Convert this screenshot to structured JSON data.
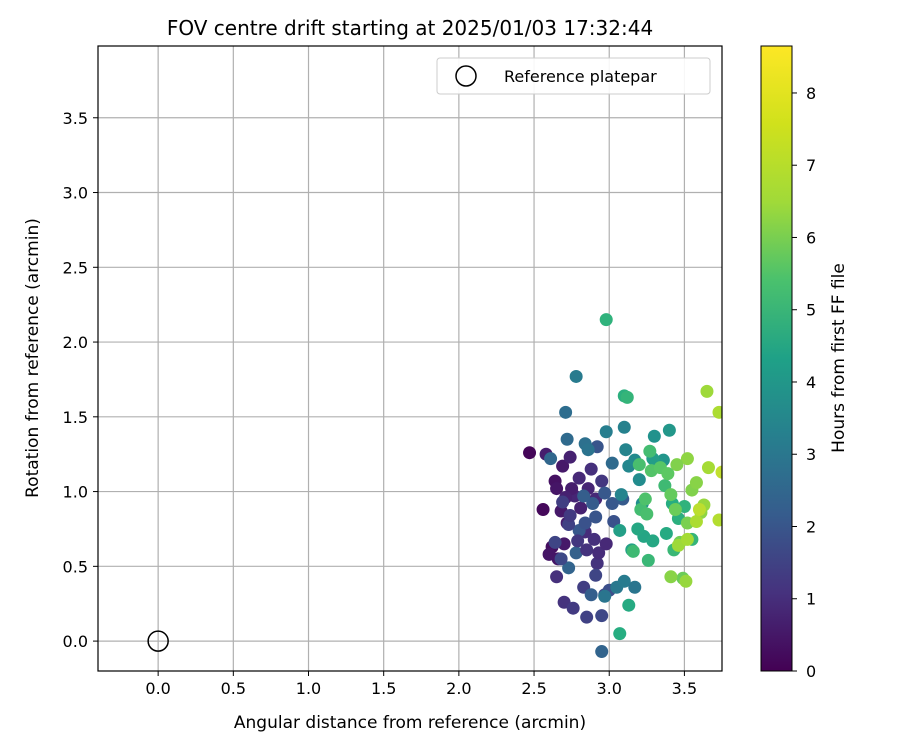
{
  "chart_data": {
    "type": "scatter",
    "title": "FOV centre drift starting at 2025/01/03 17:32:44",
    "xlabel": "Angular distance from reference (arcmin)",
    "ylabel": "Rotation from reference (arcmin)",
    "xlim": [
      -0.4,
      3.75
    ],
    "ylim": [
      -0.2,
      3.98
    ],
    "xticks": [
      0.0,
      0.5,
      1.0,
      1.5,
      2.0,
      2.5,
      3.0,
      3.5
    ],
    "xtick_labels": [
      "0.0",
      "0.5",
      "1.0",
      "1.5",
      "2.0",
      "2.5",
      "3.0",
      "3.5"
    ],
    "yticks": [
      0.0,
      0.5,
      1.0,
      1.5,
      2.0,
      2.5,
      3.0,
      3.5
    ],
    "ytick_labels": [
      "0.0",
      "0.5",
      "1.0",
      "1.5",
      "2.0",
      "2.5",
      "3.0",
      "3.5"
    ],
    "grid": true,
    "legend": {
      "position": "top-right",
      "entries": [
        "Reference platepar"
      ]
    },
    "reference_point": {
      "x": 0.0,
      "y": 0.0,
      "label": "Reference platepar",
      "marker": "open-circle",
      "color": "#000000"
    },
    "colorbar": {
      "label": "Hours from first FF file",
      "colormap": "viridis",
      "range": [
        0,
        8.65
      ],
      "ticks": [
        0,
        1,
        2,
        3,
        4,
        5,
        6,
        7,
        8
      ],
      "tick_labels": [
        "0",
        "1",
        "2",
        "3",
        "4",
        "5",
        "6",
        "7",
        "8"
      ]
    },
    "points": [
      {
        "x": 2.47,
        "y": 1.26,
        "h": 0.1
      },
      {
        "x": 2.56,
        "y": 0.88,
        "h": 0.2
      },
      {
        "x": 2.62,
        "y": 0.63,
        "h": 0.3
      },
      {
        "x": 2.64,
        "y": 1.07,
        "h": 0.4
      },
      {
        "x": 2.66,
        "y": 0.55,
        "h": 0.5
      },
      {
        "x": 2.69,
        "y": 1.17,
        "h": 0.6
      },
      {
        "x": 2.72,
        "y": 0.79,
        "h": 0.7
      },
      {
        "x": 2.74,
        "y": 1.23,
        "h": 0.8
      },
      {
        "x": 2.77,
        "y": 0.97,
        "h": 0.9
      },
      {
        "x": 2.8,
        "y": 1.09,
        "h": 1.0
      },
      {
        "x": 2.84,
        "y": 0.73,
        "h": 1.1
      },
      {
        "x": 2.88,
        "y": 1.15,
        "h": 1.2
      },
      {
        "x": 2.92,
        "y": 0.52,
        "h": 1.3
      },
      {
        "x": 2.95,
        "y": 1.07,
        "h": 1.4
      },
      {
        "x": 2.65,
        "y": 1.02,
        "h": 0.5
      },
      {
        "x": 2.7,
        "y": 0.65,
        "h": 0.6
      },
      {
        "x": 2.75,
        "y": 1.02,
        "h": 0.7
      },
      {
        "x": 2.81,
        "y": 0.89,
        "h": 0.8
      },
      {
        "x": 2.86,
        "y": 1.02,
        "h": 0.9
      },
      {
        "x": 2.91,
        "y": 0.95,
        "h": 1.0
      },
      {
        "x": 2.6,
        "y": 0.58,
        "h": 0.5
      },
      {
        "x": 2.68,
        "y": 0.87,
        "h": 0.6
      },
      {
        "x": 2.58,
        "y": 1.25,
        "h": 0.7
      },
      {
        "x": 2.71,
        "y": 0.96,
        "h": 0.8
      },
      {
        "x": 2.65,
        "y": 0.43,
        "h": 1.2
      },
      {
        "x": 2.7,
        "y": 0.26,
        "h": 1.3
      },
      {
        "x": 2.76,
        "y": 0.22,
        "h": 1.5
      },
      {
        "x": 2.83,
        "y": 0.36,
        "h": 1.6
      },
      {
        "x": 2.85,
        "y": 0.16,
        "h": 1.7
      },
      {
        "x": 2.91,
        "y": 0.44,
        "h": 1.8
      },
      {
        "x": 2.95,
        "y": 0.17,
        "h": 1.9
      },
      {
        "x": 2.97,
        "y": 0.31,
        "h": 2.0
      },
      {
        "x": 3.0,
        "y": 0.34,
        "h": 2.1
      },
      {
        "x": 3.03,
        "y": 0.8,
        "h": 2.2
      },
      {
        "x": 2.92,
        "y": 1.3,
        "h": 2.3
      },
      {
        "x": 2.97,
        "y": 0.99,
        "h": 2.4
      },
      {
        "x": 2.89,
        "y": 0.92,
        "h": 2.5
      },
      {
        "x": 2.83,
        "y": 0.97,
        "h": 2.6
      },
      {
        "x": 2.78,
        "y": 0.59,
        "h": 2.7
      },
      {
        "x": 2.73,
        "y": 0.49,
        "h": 2.8
      },
      {
        "x": 2.61,
        "y": 1.22,
        "h": 2.9
      },
      {
        "x": 2.72,
        "y": 1.35,
        "h": 3.0
      },
      {
        "x": 2.71,
        "y": 1.53,
        "h": 3.1
      },
      {
        "x": 2.84,
        "y": 1.32,
        "h": 3.2
      },
      {
        "x": 2.86,
        "y": 1.28,
        "h": 3.3
      },
      {
        "x": 2.97,
        "y": 0.3,
        "h": 3.4
      },
      {
        "x": 3.05,
        "y": 0.36,
        "h": 3.5
      },
      {
        "x": 3.1,
        "y": 0.4,
        "h": 3.6
      },
      {
        "x": 3.17,
        "y": 0.36,
        "h": 3.4
      },
      {
        "x": 2.95,
        "y": -0.07,
        "h": 2.8
      },
      {
        "x": 2.88,
        "y": 0.31,
        "h": 2.6
      },
      {
        "x": 2.8,
        "y": 0.74,
        "h": 2.4
      },
      {
        "x": 2.78,
        "y": 1.77,
        "h": 3.6
      },
      {
        "x": 2.98,
        "y": 1.4,
        "h": 3.7
      },
      {
        "x": 3.1,
        "y": 1.43,
        "h": 3.8
      },
      {
        "x": 3.11,
        "y": 1.28,
        "h": 3.9
      },
      {
        "x": 2.84,
        "y": 0.79,
        "h": 2.2
      },
      {
        "x": 2.91,
        "y": 0.83,
        "h": 2.3
      },
      {
        "x": 3.02,
        "y": 0.92,
        "h": 2.4
      },
      {
        "x": 3.09,
        "y": 0.95,
        "h": 2.5
      },
      {
        "x": 2.68,
        "y": 0.55,
        "h": 1.9
      },
      {
        "x": 2.64,
        "y": 0.66,
        "h": 1.8
      },
      {
        "x": 2.73,
        "y": 0.78,
        "h": 1.7
      },
      {
        "x": 2.69,
        "y": 0.93,
        "h": 1.6
      },
      {
        "x": 2.74,
        "y": 0.84,
        "h": 1.5
      },
      {
        "x": 2.79,
        "y": 0.67,
        "h": 1.4
      },
      {
        "x": 2.85,
        "y": 0.61,
        "h": 1.3
      },
      {
        "x": 2.9,
        "y": 0.68,
        "h": 1.2
      },
      {
        "x": 2.93,
        "y": 0.59,
        "h": 1.1
      },
      {
        "x": 2.98,
        "y": 0.65,
        "h": 1.0
      },
      {
        "x": 3.02,
        "y": 1.19,
        "h": 3.0
      },
      {
        "x": 3.08,
        "y": 0.98,
        "h": 3.9
      },
      {
        "x": 3.13,
        "y": 1.17,
        "h": 4.0
      },
      {
        "x": 3.17,
        "y": 1.21,
        "h": 4.1
      },
      {
        "x": 3.2,
        "y": 1.08,
        "h": 4.2
      },
      {
        "x": 3.22,
        "y": 0.92,
        "h": 4.3
      },
      {
        "x": 3.3,
        "y": 1.37,
        "h": 4.4
      },
      {
        "x": 3.36,
        "y": 1.21,
        "h": 4.5
      },
      {
        "x": 3.4,
        "y": 1.41,
        "h": 4.6
      },
      {
        "x": 3.33,
        "y": 1.18,
        "h": 4.7
      },
      {
        "x": 3.29,
        "y": 1.22,
        "h": 4.8
      },
      {
        "x": 3.07,
        "y": 0.74,
        "h": 4.9
      },
      {
        "x": 3.15,
        "y": 0.61,
        "h": 5.0
      },
      {
        "x": 3.23,
        "y": 0.7,
        "h": 5.1
      },
      {
        "x": 3.29,
        "y": 0.67,
        "h": 5.2
      },
      {
        "x": 3.38,
        "y": 0.72,
        "h": 5.3
      },
      {
        "x": 3.42,
        "y": 0.92,
        "h": 5.4
      },
      {
        "x": 3.46,
        "y": 0.82,
        "h": 5.5
      },
      {
        "x": 3.5,
        "y": 0.9,
        "h": 5.6
      },
      {
        "x": 3.55,
        "y": 0.68,
        "h": 5.7
      },
      {
        "x": 3.43,
        "y": 0.61,
        "h": 5.8
      },
      {
        "x": 3.37,
        "y": 1.04,
        "h": 5.9
      },
      {
        "x": 3.27,
        "y": 1.27,
        "h": 6.0
      },
      {
        "x": 3.2,
        "y": 1.18,
        "h": 6.1
      },
      {
        "x": 2.98,
        "y": 2.15,
        "h": 5.6
      },
      {
        "x": 3.1,
        "y": 1.64,
        "h": 5.5
      },
      {
        "x": 3.12,
        "y": 1.63,
        "h": 5.7
      },
      {
        "x": 3.07,
        "y": 0.05,
        "h": 5.4
      },
      {
        "x": 3.13,
        "y": 0.24,
        "h": 5.3
      },
      {
        "x": 3.19,
        "y": 0.75,
        "h": 5.2
      },
      {
        "x": 3.26,
        "y": 0.54,
        "h": 5.8
      },
      {
        "x": 3.16,
        "y": 0.6,
        "h": 5.9
      },
      {
        "x": 3.21,
        "y": 0.88,
        "h": 6.0
      },
      {
        "x": 3.25,
        "y": 0.85,
        "h": 6.1
      },
      {
        "x": 3.24,
        "y": 0.95,
        "h": 6.2
      },
      {
        "x": 3.28,
        "y": 1.14,
        "h": 6.3
      },
      {
        "x": 3.34,
        "y": 1.16,
        "h": 6.4
      },
      {
        "x": 3.39,
        "y": 1.12,
        "h": 6.5
      },
      {
        "x": 3.41,
        "y": 0.98,
        "h": 6.6
      },
      {
        "x": 3.44,
        "y": 0.88,
        "h": 6.7
      },
      {
        "x": 3.47,
        "y": 0.66,
        "h": 6.8
      },
      {
        "x": 3.52,
        "y": 0.79,
        "h": 6.9
      },
      {
        "x": 3.55,
        "y": 1.01,
        "h": 7.0
      },
      {
        "x": 3.58,
        "y": 1.06,
        "h": 7.1
      },
      {
        "x": 3.61,
        "y": 0.86,
        "h": 7.2
      },
      {
        "x": 3.63,
        "y": 0.91,
        "h": 7.3
      },
      {
        "x": 3.65,
        "y": 1.67,
        "h": 7.4
      },
      {
        "x": 3.66,
        "y": 1.16,
        "h": 7.5
      },
      {
        "x": 3.73,
        "y": 1.53,
        "h": 7.6
      },
      {
        "x": 3.73,
        "y": 0.81,
        "h": 7.7
      },
      {
        "x": 3.52,
        "y": 1.22,
        "h": 7.2
      },
      {
        "x": 3.45,
        "y": 1.18,
        "h": 7.0
      },
      {
        "x": 3.49,
        "y": 0.42,
        "h": 6.7
      },
      {
        "x": 3.41,
        "y": 0.43,
        "h": 7.1
      },
      {
        "x": 3.51,
        "y": 0.4,
        "h": 7.3
      },
      {
        "x": 3.46,
        "y": 0.64,
        "h": 7.4
      },
      {
        "x": 3.52,
        "y": 0.68,
        "h": 7.5
      },
      {
        "x": 3.58,
        "y": 0.8,
        "h": 7.6
      },
      {
        "x": 3.6,
        "y": 0.88,
        "h": 7.8
      },
      {
        "x": 3.75,
        "y": 1.13,
        "h": 7.9
      }
    ]
  }
}
